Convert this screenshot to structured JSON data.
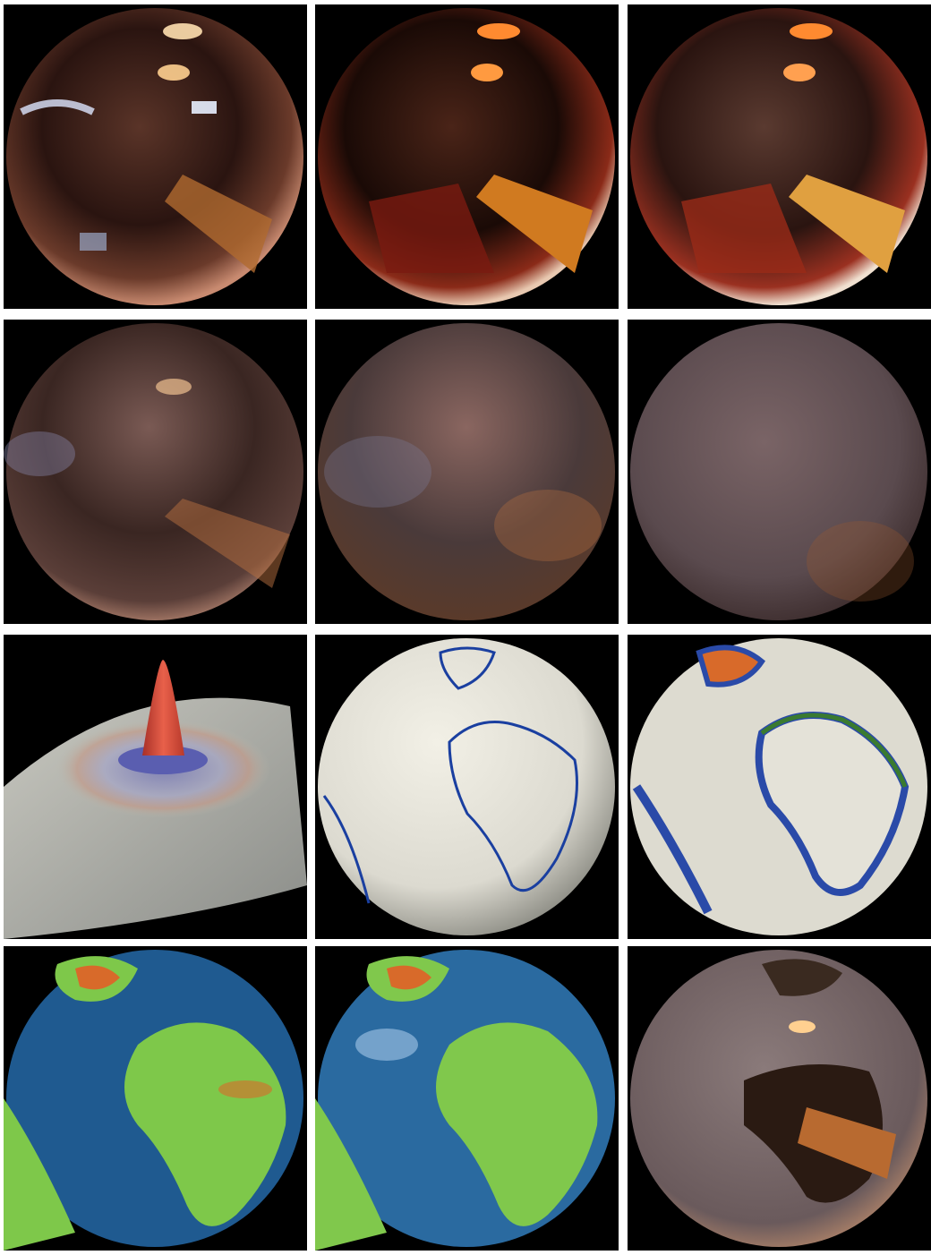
{
  "figure": {
    "rows": 4,
    "cols": 3,
    "background": "#ffffff",
    "panel_background": "#000000",
    "panels": [
      {
        "id": "a",
        "content": "glossy-sphere-environment-reflection"
      },
      {
        "id": "b",
        "content": "sphere-environment-enhanced-detail"
      },
      {
        "id": "c",
        "content": "sphere-environment-high-frequency-detail"
      },
      {
        "id": "d",
        "content": "sphere-environment-light-blur"
      },
      {
        "id": "e",
        "content": "sphere-environment-medium-blur"
      },
      {
        "id": "f",
        "content": "sphere-environment-diffuse"
      },
      {
        "id": "g",
        "content": "peak-on-curved-surface"
      },
      {
        "id": "h",
        "content": "white-globe-coastline-outlines"
      },
      {
        "id": "i",
        "content": "white-globe-stippled-elevation"
      },
      {
        "id": "j",
        "content": "colored-earth-globe-rough"
      },
      {
        "id": "k",
        "content": "colored-earth-globe-glossy"
      },
      {
        "id": "l",
        "content": "globe-continents-cutout-reflection"
      }
    ],
    "colors": {
      "room_warm": "#8a4a30",
      "room_dark": "#1a0c08",
      "light_spot": "#ffd9a0",
      "diffuse_mauve": "#6e5a5c",
      "peak_red": "#d84a3a",
      "peak_purple": "#6e70b8",
      "surface_grey": "#b8b9ae",
      "globe_white": "#e8e6dc",
      "coast_blue": "#1a3fa0",
      "coast_green": "#3a7a30",
      "ocean_blue": "#1f5a90",
      "land_green": "#7ec84a",
      "elev_orange": "#d86a2a"
    }
  }
}
